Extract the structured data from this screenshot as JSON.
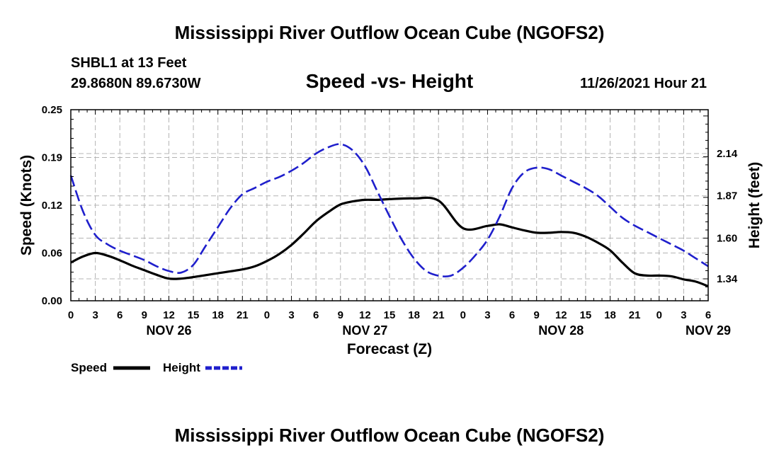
{
  "page": {
    "title": "Mississippi River Outflow Ocean Cube (NGOFS2)",
    "title_repeat": "Mississippi River Outflow Ocean Cube (NGOFS2)"
  },
  "station": {
    "name": "SHBL1 at 13 Feet",
    "coords": "29.8680N  89.6730W",
    "datetime": "11/26/2021 Hour 21"
  },
  "chart_data": {
    "type": "line",
    "title": "Speed -vs- Height",
    "xlabel": "Forecast (Z)",
    "ylabel_left": "Speed (Knots)",
    "ylabel_right": "Height (feet)",
    "x_unit": "hours from 2021-11-26 00Z",
    "xlim": [
      0,
      78
    ],
    "ylim_left": [
      0,
      0.25
    ],
    "ylim_right": [
      1.2,
      2.42
    ],
    "x_ticks": [
      0,
      3,
      6,
      9,
      12,
      15,
      18,
      21,
      24,
      27,
      30,
      33,
      36,
      39,
      42,
      45,
      48,
      51,
      54,
      57,
      60,
      63,
      66,
      69,
      72,
      75,
      78
    ],
    "x_tick_labels": [
      "0",
      "3",
      "6",
      "9",
      "12",
      "15",
      "18",
      "21",
      "0",
      "3",
      "6",
      "9",
      "12",
      "15",
      "18",
      "21",
      "0",
      "3",
      "6",
      "9",
      "12",
      "15",
      "18",
      "21",
      "0",
      "3",
      "6"
    ],
    "y_left_ticks": [
      0,
      0.0625,
      0.125,
      0.1875,
      0.25
    ],
    "y_left_tick_labels": [
      "0.00",
      "0.06",
      "0.12",
      "0.19",
      "0.25"
    ],
    "y_right_ticks": [
      1.34,
      1.6,
      1.87,
      2.14
    ],
    "y_right_tick_labels": [
      "1.34",
      "1.60",
      "1.87",
      "2.14"
    ],
    "date_labels": [
      {
        "x": 12,
        "label": "NOV 26"
      },
      {
        "x": 36,
        "label": "NOV 27"
      },
      {
        "x": 60,
        "label": "NOV 28"
      },
      {
        "x": 78,
        "label": "NOV 29"
      }
    ],
    "grid": true,
    "series": [
      {
        "name": "Speed",
        "axis": "left",
        "color": "#000000",
        "style": "solid",
        "x": [
          0,
          1.5,
          3,
          4.5,
          6,
          7.5,
          9,
          10.5,
          12,
          13.5,
          15,
          18,
          21,
          22.5,
          24,
          25.5,
          27,
          28.5,
          30,
          31.5,
          33,
          34.5,
          36,
          37.5,
          39,
          42,
          45,
          48,
          51,
          52.5,
          54,
          55.5,
          57,
          58.5,
          60,
          61.5,
          63,
          64.5,
          66,
          67.5,
          69,
          70.5,
          72,
          73.5,
          75,
          76.5,
          78
        ],
        "y": [
          0.05,
          0.058,
          0.0625,
          0.059,
          0.053,
          0.046,
          0.04,
          0.034,
          0.029,
          0.029,
          0.031,
          0.036,
          0.041,
          0.045,
          0.052,
          0.061,
          0.073,
          0.088,
          0.104,
          0.116,
          0.126,
          0.13,
          0.132,
          0.132,
          0.133,
          0.134,
          0.131,
          0.095,
          0.098,
          0.1,
          0.096,
          0.092,
          0.089,
          0.089,
          0.09,
          0.089,
          0.084,
          0.076,
          0.066,
          0.05,
          0.036,
          0.033,
          0.033,
          0.032,
          0.028,
          0.025,
          0.019
        ]
      },
      {
        "name": "Height",
        "axis": "right",
        "color": "#1f1fcc",
        "style": "dashed",
        "x": [
          0,
          1.5,
          3,
          4.5,
          6,
          7.5,
          9,
          10.5,
          12,
          13.5,
          15,
          16.5,
          18,
          19.5,
          21,
          22.5,
          24,
          25.5,
          27,
          28.5,
          30,
          31.5,
          33,
          34.5,
          36,
          37.5,
          39,
          40.5,
          42,
          43.5,
          45,
          46.5,
          48,
          49.5,
          51,
          52.5,
          54,
          55.5,
          57,
          58.5,
          60,
          61.5,
          63,
          64.5,
          66,
          67.5,
          69,
          70.5,
          72,
          73.5,
          75,
          76.5,
          78
        ],
        "y": [
          2.0,
          1.77,
          1.62,
          1.56,
          1.52,
          1.49,
          1.46,
          1.42,
          1.39,
          1.38,
          1.43,
          1.55,
          1.67,
          1.79,
          1.88,
          1.92,
          1.96,
          1.99,
          2.03,
          2.08,
          2.14,
          2.18,
          2.2,
          2.16,
          2.06,
          1.9,
          1.74,
          1.59,
          1.47,
          1.39,
          1.36,
          1.36,
          1.41,
          1.49,
          1.59,
          1.74,
          1.92,
          2.02,
          2.05,
          2.04,
          2.0,
          1.96,
          1.92,
          1.87,
          1.8,
          1.73,
          1.68,
          1.64,
          1.6,
          1.56,
          1.52,
          1.47,
          1.42
        ]
      }
    ],
    "legend": [
      {
        "label": "Speed",
        "color": "#000000",
        "style": "solid"
      },
      {
        "label": "Height",
        "color": "#1f1fcc",
        "style": "dashed"
      }
    ],
    "legend_placement": "bottom-left"
  }
}
